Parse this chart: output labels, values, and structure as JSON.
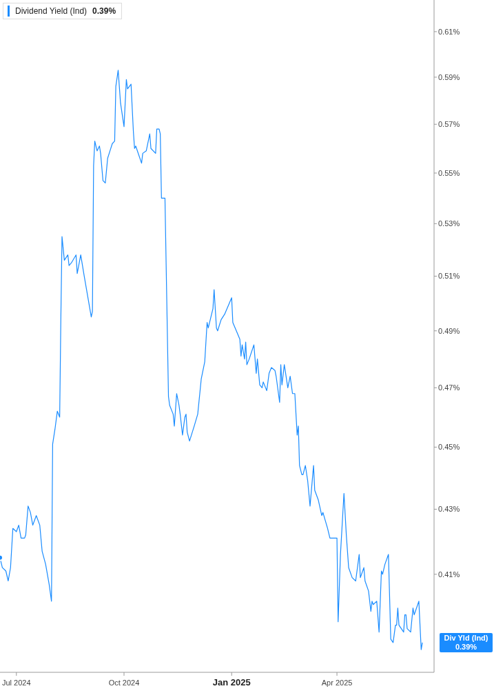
{
  "chart_data": {
    "type": "line",
    "log": true,
    "grid": false,
    "legend": "top left",
    "marker": "none",
    "line_style": "solid",
    "x": [
      "2024-06-17",
      "2024-06-19",
      "2024-06-22",
      "2024-06-24",
      "2024-06-26",
      "2024-06-28",
      "2024-07-01",
      "2024-07-03",
      "2024-07-05",
      "2024-07-08",
      "2024-07-09",
      "2024-07-11",
      "2024-07-13",
      "2024-07-15",
      "2024-07-18",
      "2024-07-21",
      "2024-07-23",
      "2024-07-26",
      "2024-07-29",
      "2024-07-31",
      "2024-08-01",
      "2024-08-03",
      "2024-08-05",
      "2024-08-07",
      "2024-08-08",
      "2024-08-09",
      "2024-08-11",
      "2024-08-14",
      "2024-08-15",
      "2024-08-17",
      "2024-08-21",
      "2024-08-22",
      "2024-08-25",
      "2024-08-28",
      "2024-09-03",
      "2024-09-04",
      "2024-09-05",
      "2024-09-06",
      "2024-09-08",
      "2024-09-10",
      "2024-09-11",
      "2024-09-13",
      "2024-09-15",
      "2024-09-17",
      "2024-09-19",
      "2024-09-21",
      "2024-09-23",
      "2024-09-24",
      "2024-09-26",
      "2024-09-28",
      "2024-10-01",
      "2024-10-03",
      "2024-10-04",
      "2024-10-07",
      "2024-10-09",
      "2024-10-10",
      "2024-10-11",
      "2024-10-16",
      "2024-10-17",
      "2024-10-20",
      "2024-10-23",
      "2024-10-24",
      "2024-10-28",
      "2024-10-29",
      "2024-10-31",
      "2024-11-01",
      "2024-11-02",
      "2024-11-05",
      "2024-11-08",
      "2024-11-09",
      "2024-11-12",
      "2024-11-13",
      "2024-11-15",
      "2024-11-17",
      "2024-11-18",
      "2024-11-20",
      "2024-11-22",
      "2024-11-23",
      "2024-11-24",
      "2024-11-26",
      "2024-11-30",
      "2024-12-03",
      "2024-12-06",
      "2024-12-09",
      "2024-12-11",
      "2024-12-12",
      "2024-12-16",
      "2024-12-17",
      "2024-12-19",
      "2024-12-20",
      "2024-12-23",
      "2024-12-26",
      "2024-12-29",
      "2025-01-01",
      "2025-01-02",
      "2025-01-06",
      "2025-01-08",
      "2025-01-09",
      "2025-01-10",
      "2025-01-12",
      "2025-01-13",
      "2025-01-14",
      "2025-01-16",
      "2025-01-20",
      "2025-01-22",
      "2025-01-23",
      "2025-01-25",
      "2025-01-27",
      "2025-01-28",
      "2025-01-31",
      "2025-02-02",
      "2025-02-04",
      "2025-02-07",
      "2025-02-08",
      "2025-02-11",
      "2025-02-12",
      "2025-02-13",
      "2025-02-15",
      "2025-02-18",
      "2025-02-20",
      "2025-02-22",
      "2025-02-24",
      "2025-02-26",
      "2025-02-27",
      "2025-02-28",
      "2025-03-02",
      "2025-03-03",
      "2025-03-05",
      "2025-03-07",
      "2025-03-09",
      "2025-03-12",
      "2025-03-13",
      "2025-03-16",
      "2025-03-19",
      "2025-03-20",
      "2025-03-24",
      "2025-03-26",
      "2025-04-01",
      "2025-04-02",
      "2025-04-04",
      "2025-04-07",
      "2025-04-09",
      "2025-04-11",
      "2025-04-14",
      "2025-04-17",
      "2025-04-20",
      "2025-04-21",
      "2025-04-24",
      "2025-04-25",
      "2025-04-28",
      "2025-04-30",
      "2025-05-01",
      "2025-05-02",
      "2025-05-05",
      "2025-05-07",
      "2025-05-09",
      "2025-05-10",
      "2025-05-12",
      "2025-05-15",
      "2025-05-17",
      "2025-05-19",
      "2025-05-21",
      "2025-05-22",
      "2025-05-23",
      "2025-05-24",
      "2025-05-28",
      "2025-05-29",
      "2025-05-30",
      "2025-05-31",
      "2025-06-03",
      "2025-06-05",
      "2025-06-06",
      "2025-06-07",
      "2025-06-10",
      "2025-06-12",
      "2025-06-13"
    ],
    "series": [
      {
        "name": "Dividend Yield (Ind)",
        "color": "#1a8cff",
        "values": [
          0.415,
          0.412,
          0.411,
          0.408,
          0.412,
          0.424,
          0.423,
          0.425,
          0.421,
          0.421,
          0.422,
          0.431,
          0.429,
          0.425,
          0.428,
          0.425,
          0.417,
          0.413,
          0.407,
          0.402,
          0.451,
          0.456,
          0.462,
          0.46,
          0.494,
          0.525,
          0.516,
          0.518,
          0.514,
          0.515,
          0.518,
          0.511,
          0.518,
          0.51,
          0.495,
          0.497,
          0.553,
          0.563,
          0.559,
          0.561,
          0.558,
          0.547,
          0.546,
          0.556,
          0.559,
          0.562,
          0.563,
          0.586,
          0.593,
          0.579,
          0.569,
          0.589,
          0.585,
          0.587,
          0.567,
          0.56,
          0.561,
          0.554,
          0.558,
          0.559,
          0.566,
          0.56,
          0.558,
          0.568,
          0.568,
          0.566,
          0.54,
          0.54,
          0.467,
          0.464,
          0.461,
          0.457,
          0.468,
          0.464,
          0.461,
          0.454,
          0.46,
          0.461,
          0.455,
          0.452,
          0.457,
          0.461,
          0.473,
          0.479,
          0.493,
          0.491,
          0.498,
          0.505,
          0.491,
          0.49,
          0.494,
          0.496,
          0.499,
          0.502,
          0.493,
          0.489,
          0.487,
          0.481,
          0.485,
          0.48,
          0.486,
          0.478,
          0.48,
          0.485,
          0.475,
          0.48,
          0.471,
          0.47,
          0.472,
          0.469,
          0.475,
          0.477,
          0.476,
          0.474,
          0.465,
          0.478,
          0.471,
          0.478,
          0.47,
          0.474,
          0.468,
          0.468,
          0.454,
          0.457,
          0.444,
          0.441,
          0.441,
          0.444,
          0.439,
          0.431,
          0.444,
          0.436,
          0.433,
          0.428,
          0.429,
          0.424,
          0.421,
          0.421,
          0.396,
          0.416,
          0.435,
          0.422,
          0.412,
          0.409,
          0.408,
          0.416,
          0.409,
          0.412,
          0.408,
          0.405,
          0.399,
          0.402,
          0.401,
          0.402,
          0.393,
          0.411,
          0.41,
          0.413,
          0.416,
          0.391,
          0.39,
          0.395,
          0.395,
          0.4,
          0.395,
          0.393,
          0.398,
          0.398,
          0.394,
          0.393,
          0.4,
          0.398,
          0.399,
          0.402,
          0.388,
          0.39
        ]
      }
    ],
    "xlim": [
      "2024-06-17",
      "2025-06-23"
    ],
    "xticks": [
      {
        "value": "2024-07-01",
        "label": "Jul 2024"
      },
      {
        "value": "2024-10-01",
        "label": "Oct 2024"
      },
      {
        "value": "2025-01-01",
        "label": "Jan 2025"
      },
      {
        "value": "2025-04-01",
        "label": "Apr 2025"
      }
    ],
    "ylim": [
      0.3816,
      0.6243
    ],
    "yticks": [
      {
        "value": 0.41,
        "label": "0.41%"
      },
      {
        "value": 0.43,
        "label": "0.43%"
      },
      {
        "value": 0.45,
        "label": "0.45%"
      },
      {
        "value": 0.47,
        "label": "0.47%"
      },
      {
        "value": 0.49,
        "label": "0.49%"
      },
      {
        "value": 0.51,
        "label": "0.51%"
      },
      {
        "value": 0.53,
        "label": "0.53%"
      },
      {
        "value": 0.55,
        "label": "0.55%"
      },
      {
        "value": 0.57,
        "label": "0.57%"
      },
      {
        "value": 0.59,
        "label": "0.59%"
      },
      {
        "value": 0.61,
        "label": "0.61%"
      }
    ],
    "annotations": [
      "0.39%",
      "Div Yld (Ind)",
      "0.39%"
    ]
  }
}
